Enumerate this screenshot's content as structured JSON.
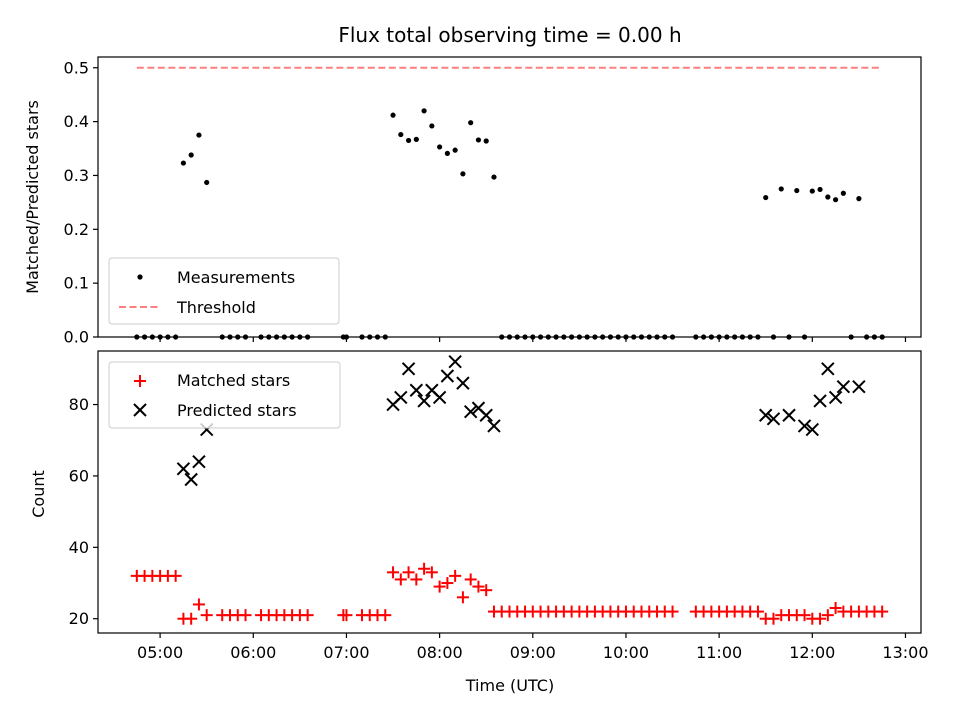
{
  "figure": {
    "title": "Flux total observing time = 0.00 h",
    "xlabel": "Time (UTC)"
  },
  "chart_data": [
    {
      "type": "scatter",
      "title": "Flux total observing time = 0.00 h",
      "ylabel": "Matched/Predicted stars",
      "xlabel": "",
      "xlim": [
        "04:20",
        "13:10"
      ],
      "ylim": [
        0,
        0.52
      ],
      "yticks": [
        "0.0",
        "0.1",
        "0.2",
        "0.3",
        "0.4",
        "0.5"
      ],
      "grid": false,
      "legend": {
        "location": "lower-left",
        "entries": [
          "Measurements",
          "Threshold"
        ]
      },
      "series": [
        {
          "name": "Measurements",
          "marker": "dot",
          "color": "#000000",
          "x": [
            "04:45",
            "04:50",
            "04:55",
            "05:00",
            "05:05",
            "05:10",
            "05:15",
            "05:20",
            "05:25",
            "05:30",
            "05:40",
            "05:45",
            "05:50",
            "05:55",
            "06:05",
            "06:10",
            "06:15",
            "06:20",
            "06:25",
            "06:30",
            "06:35",
            "06:58",
            "07:00",
            "07:10",
            "07:15",
            "07:20",
            "07:25",
            "07:30",
            "07:35",
            "07:40",
            "07:45",
            "07:50",
            "07:55",
            "08:00",
            "08:05",
            "08:10",
            "08:15",
            "08:20",
            "08:25",
            "08:30",
            "08:35",
            "08:40",
            "08:45",
            "08:50",
            "08:55",
            "09:00",
            "09:05",
            "09:10",
            "09:15",
            "09:20",
            "09:25",
            "09:30",
            "09:35",
            "09:40",
            "09:45",
            "09:50",
            "09:55",
            "10:00",
            "10:05",
            "10:10",
            "10:15",
            "10:20",
            "10:25",
            "10:30",
            "10:45",
            "10:50",
            "10:55",
            "11:00",
            "11:05",
            "11:10",
            "11:15",
            "11:20",
            "11:25",
            "11:30",
            "11:35",
            "11:40",
            "11:45",
            "11:50",
            "11:55",
            "12:00",
            "12:05",
            "12:10",
            "12:15",
            "12:20",
            "12:25",
            "12:30",
            "12:35",
            "12:40",
            "12:45"
          ],
          "y": [
            0,
            0,
            0,
            0,
            0,
            0,
            0.323,
            0.338,
            0.375,
            0.287,
            0,
            0,
            0,
            0,
            0,
            0,
            0,
            0,
            0,
            0,
            0,
            0,
            0,
            0,
            0,
            0,
            0,
            0.412,
            0.376,
            0.365,
            0.367,
            0.42,
            0.392,
            0.353,
            0.341,
            0.347,
            0.303,
            0.398,
            0.366,
            0.364,
            0.297,
            0,
            0,
            0,
            0,
            0,
            0,
            0,
            0,
            0,
            0,
            0,
            0,
            0,
            0,
            0,
            0,
            0,
            0,
            0,
            0,
            0,
            0,
            0,
            0,
            0,
            0,
            0,
            0,
            0,
            0,
            0,
            0,
            0.259,
            0,
            0.275,
            0,
            0.272,
            0,
            0.271,
            0.274,
            0.26,
            0.255,
            0.267,
            0,
            0.257,
            0,
            0,
            0
          ]
        },
        {
          "name": "Threshold",
          "style": "dashed",
          "color": "#ff7f7f",
          "x": [
            "04:45",
            "12:45"
          ],
          "y": [
            0.5,
            0.5
          ]
        }
      ]
    },
    {
      "type": "scatter",
      "title": "",
      "ylabel": "Count",
      "xlabel": "Time (UTC)",
      "xlim": [
        "04:20",
        "13:10"
      ],
      "ylim": [
        16,
        95
      ],
      "yticks": [
        "20",
        "40",
        "60",
        "80"
      ],
      "xticks": [
        "05:00",
        "06:00",
        "07:00",
        "08:00",
        "09:00",
        "10:00",
        "11:00",
        "12:00",
        "13:00"
      ],
      "grid": false,
      "legend": {
        "location": "upper-left",
        "entries": [
          "Matched stars",
          "Predicted stars"
        ]
      },
      "series": [
        {
          "name": "Matched stars",
          "marker": "plus",
          "color": "#ff0000",
          "x": [
            "04:45",
            "04:50",
            "04:55",
            "05:00",
            "05:05",
            "05:10",
            "05:15",
            "05:20",
            "05:25",
            "05:30",
            "05:40",
            "05:45",
            "05:50",
            "05:55",
            "06:05",
            "06:10",
            "06:15",
            "06:20",
            "06:25",
            "06:30",
            "06:35",
            "06:58",
            "07:00",
            "07:10",
            "07:15",
            "07:20",
            "07:25",
            "07:30",
            "07:35",
            "07:40",
            "07:45",
            "07:50",
            "07:55",
            "08:00",
            "08:05",
            "08:10",
            "08:15",
            "08:20",
            "08:25",
            "08:30",
            "08:35",
            "08:40",
            "08:45",
            "08:50",
            "08:55",
            "09:00",
            "09:05",
            "09:10",
            "09:15",
            "09:20",
            "09:25",
            "09:30",
            "09:35",
            "09:40",
            "09:45",
            "09:50",
            "09:55",
            "10:00",
            "10:05",
            "10:10",
            "10:15",
            "10:20",
            "10:25",
            "10:30",
            "10:45",
            "10:50",
            "10:55",
            "11:00",
            "11:05",
            "11:10",
            "11:15",
            "11:20",
            "11:25",
            "11:30",
            "11:35",
            "11:40",
            "11:45",
            "11:50",
            "11:55",
            "12:00",
            "12:05",
            "12:10",
            "12:15",
            "12:20",
            "12:25",
            "12:30",
            "12:35",
            "12:40",
            "12:45"
          ],
          "y": [
            32,
            32,
            32,
            32,
            32,
            32,
            20,
            20,
            24,
            21,
            21,
            21,
            21,
            21,
            21,
            21,
            21,
            21,
            21,
            21,
            21,
            21,
            21,
            21,
            21,
            21,
            21,
            33,
            31,
            33,
            31,
            34,
            33,
            29,
            30,
            32,
            26,
            31,
            29,
            28,
            22,
            22,
            22,
            22,
            22,
            22,
            22,
            22,
            22,
            22,
            22,
            22,
            22,
            22,
            22,
            22,
            22,
            22,
            22,
            22,
            22,
            22,
            22,
            22,
            22,
            22,
            22,
            22,
            22,
            22,
            22,
            22,
            22,
            20,
            20,
            21,
            21,
            21,
            21,
            20,
            20,
            21,
            23,
            22,
            22,
            22,
            22,
            22,
            22
          ]
        },
        {
          "name": "Predicted stars",
          "marker": "x",
          "color": "#000000",
          "x": [
            "05:15",
            "05:20",
            "05:25",
            "05:30",
            "07:30",
            "07:35",
            "07:40",
            "07:45",
            "07:50",
            "07:55",
            "08:00",
            "08:05",
            "08:10",
            "08:15",
            "08:20",
            "08:25",
            "08:30",
            "08:35",
            "11:30",
            "11:35",
            "11:45",
            "11:55",
            "12:00",
            "12:05",
            "12:10",
            "12:15",
            "12:20",
            "12:30"
          ],
          "y": [
            62,
            59,
            64,
            73,
            80,
            82,
            90,
            84,
            81,
            84,
            82,
            88,
            92,
            86,
            78,
            79,
            77,
            74,
            77,
            76,
            77,
            74,
            73,
            81,
            90,
            82,
            85,
            85
          ]
        }
      ]
    }
  ]
}
